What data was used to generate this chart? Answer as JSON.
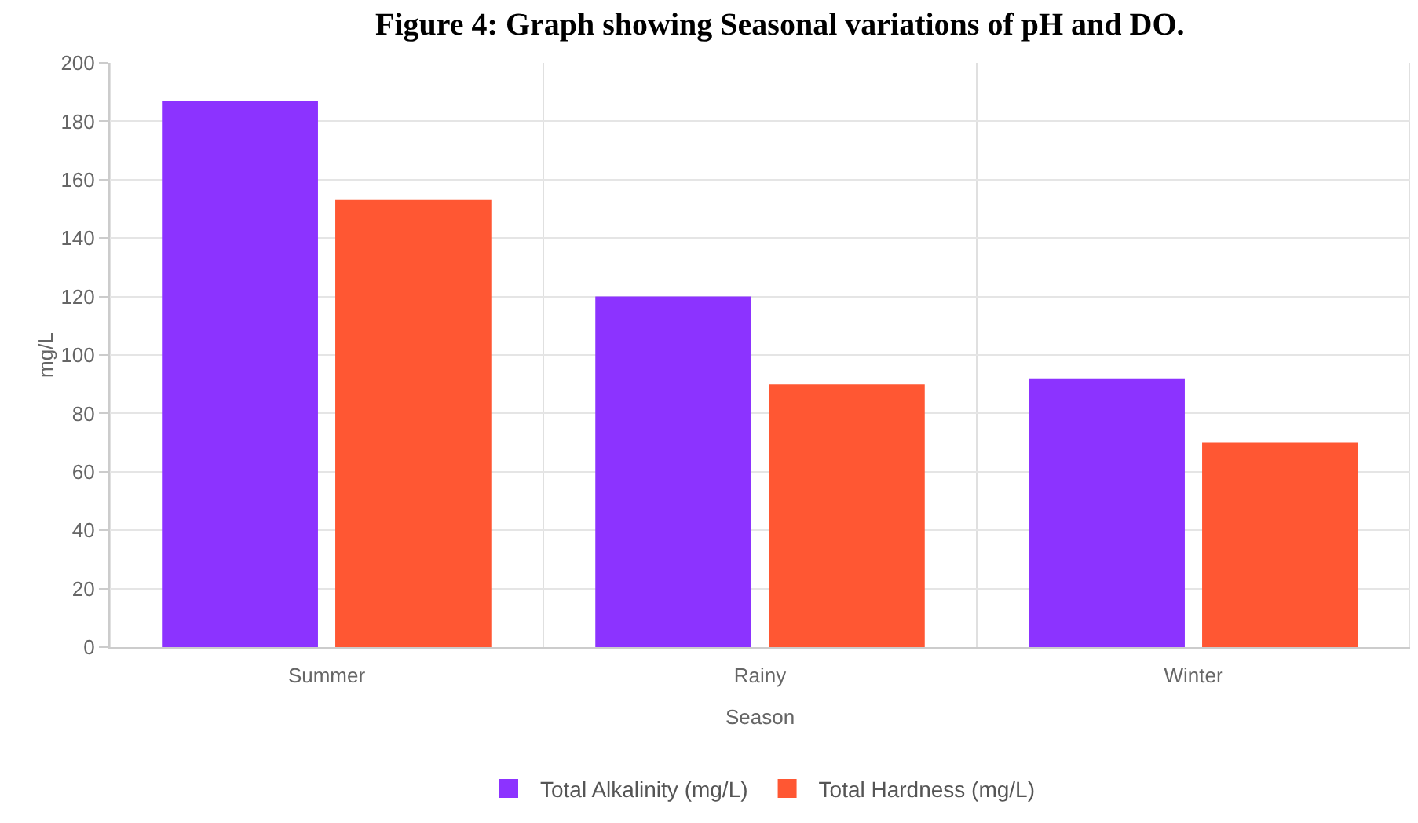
{
  "chart_data": {
    "type": "bar",
    "title": "Figure 4: Graph showing Seasonal variations of pH and DO.",
    "xlabel": "Season",
    "ylabel": "mg/L",
    "categories": [
      "Summer",
      "Rainy",
      "Winter"
    ],
    "series": [
      {
        "name": "Total Alkalinity (mg/L)",
        "color": "#8c33ff",
        "values": [
          187,
          120,
          92
        ]
      },
      {
        "name": "Total Hardness (mg/L)",
        "color": "#ff5733",
        "values": [
          153,
          90,
          70
        ]
      }
    ],
    "ylim": [
      0,
      200
    ],
    "yticks": [
      0,
      20,
      40,
      60,
      80,
      100,
      120,
      140,
      160,
      180,
      200
    ],
    "grid": true,
    "legend": "bottom"
  }
}
